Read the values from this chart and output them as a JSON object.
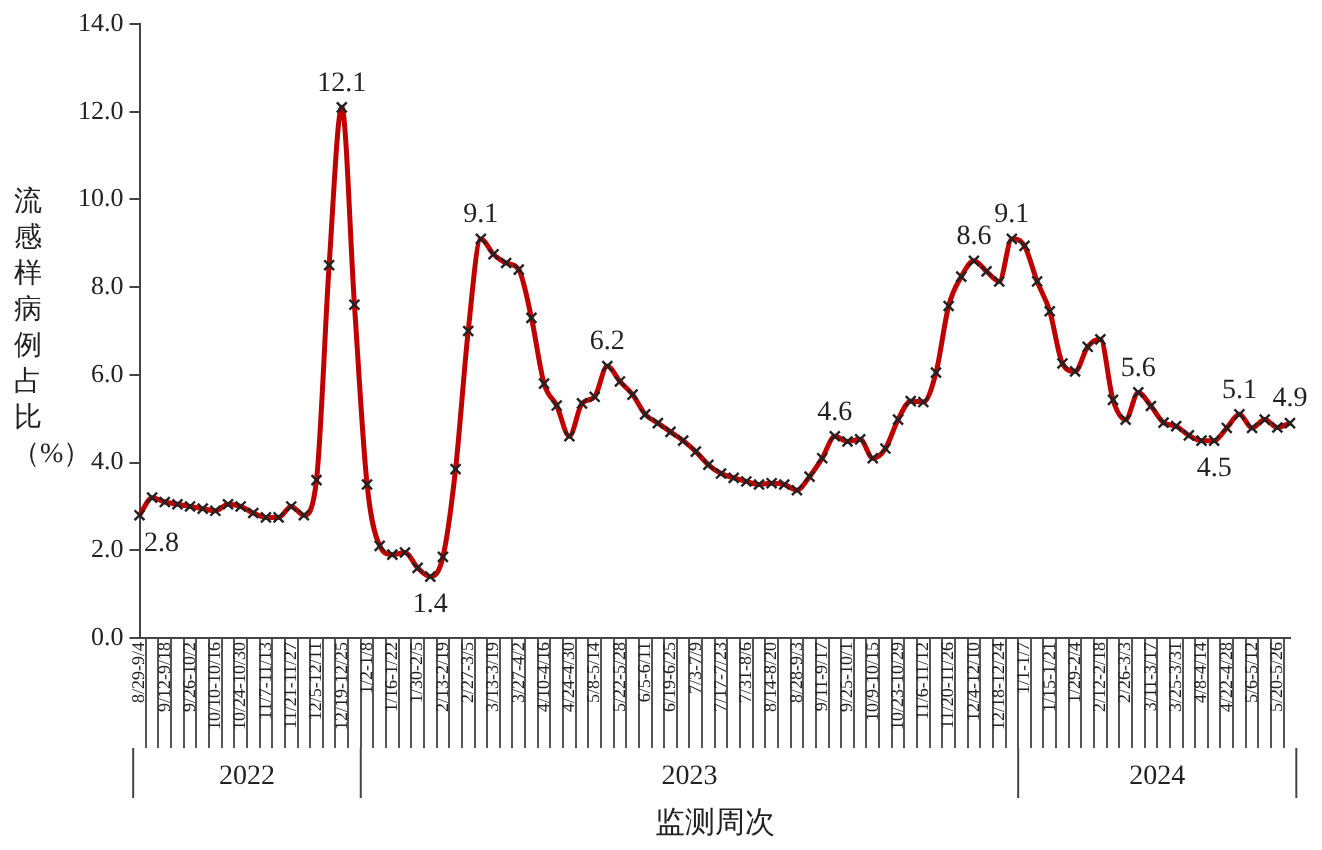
{
  "chart_data": {
    "type": "line",
    "categories": [
      "8/29-9/4",
      null,
      "9/12-9/18",
      null,
      "9/26-10/2",
      null,
      "10/10-10/16",
      null,
      "10/24-10/30",
      null,
      "11/7-11/13",
      null,
      "11/21-11/27",
      null,
      "12/5-12/11",
      null,
      "12/19-12/25",
      null,
      "1/2-1/8",
      null,
      "1/16-1/22",
      null,
      "1/30-2/5",
      null,
      "2/13-2/19",
      null,
      "2/27-3/5",
      null,
      "3/13-3/19",
      null,
      "3/27-4/2",
      null,
      "4/10-4/16",
      null,
      "4/24-4/30",
      null,
      "5/8-5/14",
      null,
      "5/22-5/28",
      null,
      "6/5-6/11",
      null,
      "6/19-6/25",
      null,
      "7/3-7/9",
      null,
      "7/17-7/23",
      null,
      "7/31-8/6",
      null,
      "8/14-8/20",
      null,
      "8/28-9/3",
      null,
      "9/11-9/17",
      null,
      "9/25-10/1",
      null,
      "10/9-10/15",
      null,
      "10/23-10/29",
      null,
      "11/6-11/12",
      null,
      "11/20-11/26",
      null,
      "12/4-12/10",
      null,
      "12/18-12/24",
      null,
      "1/1-1/7",
      null,
      "1/15-1/21",
      null,
      "1/29-2/4",
      null,
      "2/12-2/18",
      null,
      "2/26-3/3",
      null,
      "3/11-3/17",
      null,
      "3/25-3/31",
      null,
      "4/8-4/14",
      null,
      "4/22-4/28",
      null,
      "5/6-5/12",
      null,
      "5/20-5/26",
      null
    ],
    "values": [
      2.8,
      3.2,
      3.1,
      3.05,
      3.0,
      2.95,
      2.9,
      3.05,
      3.0,
      2.85,
      2.75,
      2.75,
      3.0,
      2.8,
      3.6,
      8.5,
      12.1,
      7.6,
      3.5,
      2.1,
      1.9,
      1.95,
      1.6,
      1.4,
      1.85,
      3.85,
      7.0,
      9.1,
      8.75,
      8.55,
      8.4,
      7.3,
      5.8,
      5.3,
      4.6,
      5.35,
      5.5,
      6.2,
      5.85,
      5.55,
      5.1,
      4.9,
      4.7,
      4.5,
      4.25,
      3.95,
      3.75,
      3.65,
      3.57,
      3.5,
      3.53,
      3.5,
      3.37,
      3.68,
      4.1,
      4.6,
      4.48,
      4.53,
      4.1,
      4.32,
      4.98,
      5.4,
      5.38,
      6.05,
      7.57,
      8.24,
      8.6,
      8.36,
      8.13,
      9.1,
      8.94,
      8.13,
      7.45,
      6.26,
      6.08,
      6.64,
      6.81,
      5.43,
      4.98,
      5.6,
      5.29,
      4.91,
      4.83,
      4.62,
      4.5,
      4.5,
      4.79,
      5.1,
      4.79,
      4.98,
      4.8,
      4.9
    ],
    "value_labels": [
      "2.8",
      null,
      null,
      null,
      null,
      null,
      null,
      null,
      null,
      null,
      null,
      null,
      null,
      null,
      null,
      null,
      "12.1",
      null,
      null,
      null,
      null,
      null,
      null,
      "1.4",
      null,
      null,
      null,
      "9.1",
      null,
      null,
      null,
      null,
      null,
      null,
      null,
      null,
      null,
      "6.2",
      null,
      null,
      null,
      null,
      null,
      null,
      null,
      null,
      null,
      null,
      null,
      null,
      null,
      null,
      null,
      null,
      null,
      "4.6",
      null,
      null,
      null,
      null,
      null,
      null,
      null,
      null,
      null,
      null,
      "8.6",
      null,
      null,
      "9.1",
      null,
      null,
      null,
      null,
      null,
      null,
      null,
      null,
      null,
      "5.6",
      null,
      null,
      null,
      null,
      null,
      "4.5",
      null,
      "5.1",
      null,
      null,
      null,
      "4.9"
    ],
    "color": "#c00000",
    "marker": "cross",
    "ylim": [
      0,
      14
    ],
    "yticks": [
      {
        "value": 0,
        "label": "0.0"
      },
      {
        "value": 2,
        "label": "2.0"
      },
      {
        "value": 4,
        "label": "4.0"
      },
      {
        "value": 6,
        "label": "6.0"
      },
      {
        "value": 8,
        "label": "8.0"
      },
      {
        "value": 10,
        "label": "10.0"
      },
      {
        "value": 12,
        "label": "12.0"
      },
      {
        "value": 14,
        "label": "14.0"
      }
    ],
    "ylabel": "流感样病例占比（%）",
    "xlabel": "监测周次",
    "grid": false,
    "legend": false,
    "annotations": [
      "2022",
      "2023",
      "2024"
    ]
  }
}
